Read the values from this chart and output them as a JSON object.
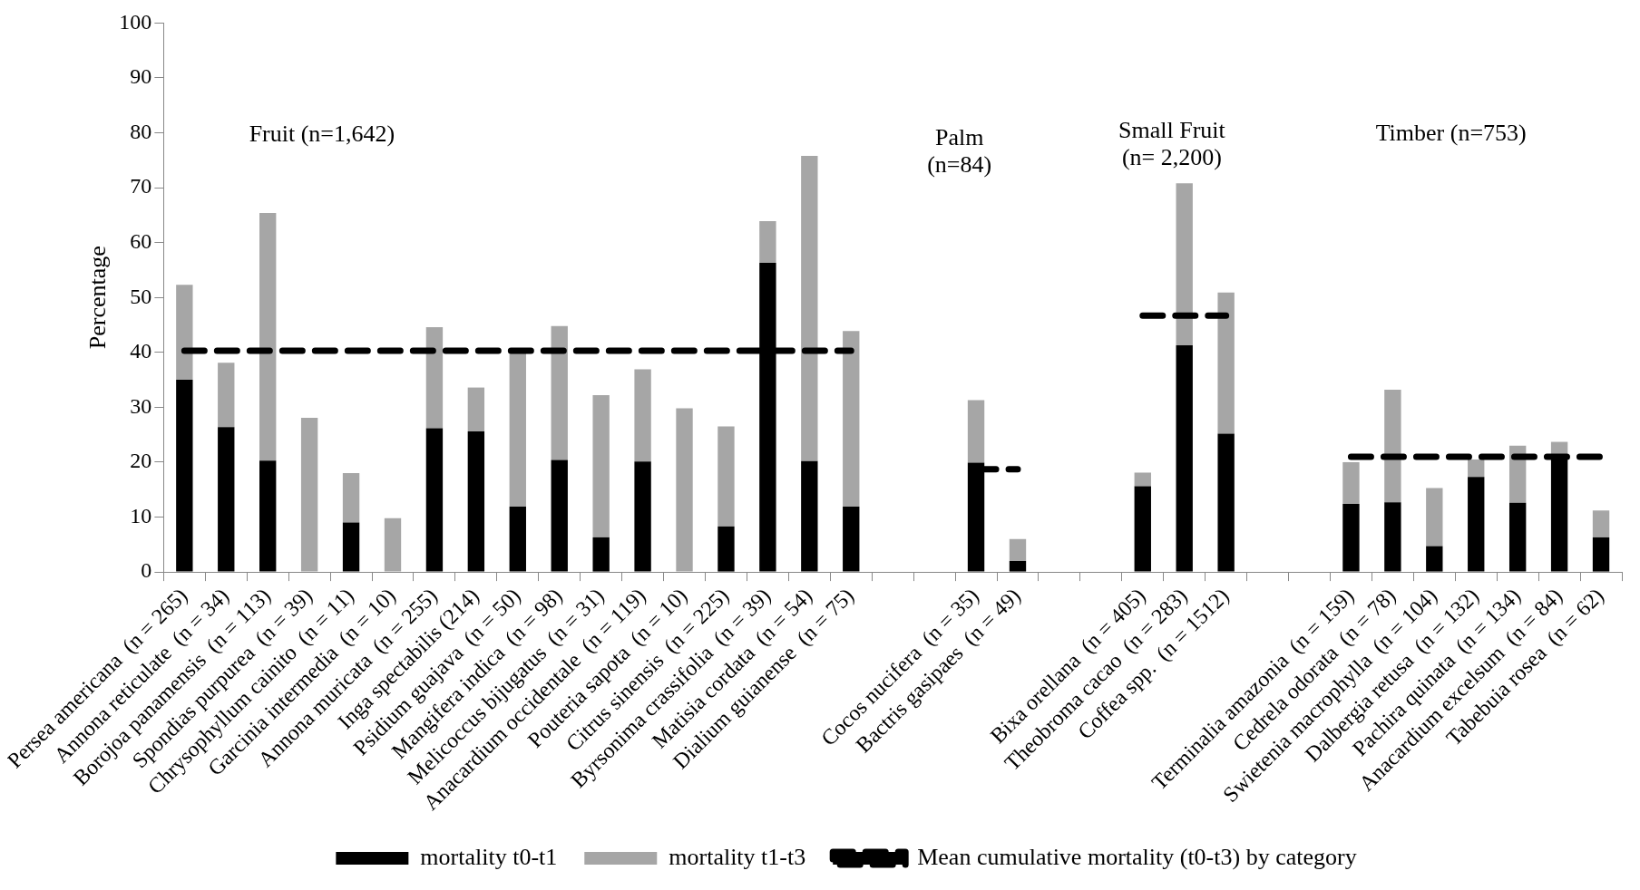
{
  "chart_data": {
    "type": "bar",
    "stacked": true,
    "ylabel": "Percentage",
    "ylim": [
      0,
      100
    ],
    "yticks": [
      0,
      10,
      20,
      30,
      40,
      50,
      60,
      70,
      80,
      90,
      100
    ],
    "legend": "bottom",
    "categories": [
      "Persea americana  (n = 265)",
      "Annona reticulate  (n = 34)",
      "Borojoa panamensis  (n = 113)",
      "Spondias purpurea  (n = 39)",
      "Chrysophyllum cainito  (n = 11)",
      "Garcinia intermedia  (n = 10)",
      "Annona muricata  (n = 255)",
      "Inga spectabilis (214)",
      "Psidium guajava  (n = 50)",
      "Mangifera indica  (n = 98)",
      "Melicoccus bijugatus  (n = 31)",
      "Anacardium occidentale  (n = 119)",
      "Pouteria sapota  (n = 10)",
      "Citrus sinensis  (n = 225)",
      "Byrsonima crassifolia  (n = 39)",
      "Matisia cordata  (n = 54)",
      "Dialium guianense  (n = 75)",
      null,
      null,
      "Cocos nucifera  (n = 35)",
      "Bactris gasipaes  (n = 49)",
      null,
      null,
      "Bixa orellana  (n = 405)",
      "Theobroma cacao  (n = 283)",
      "Coffea spp.  (n = 1512)",
      null,
      null,
      "Terminalia amazonia  (n = 159)",
      "Cedrela odorata  (n = 78)",
      "Swietenia macrophylla  (n = 104)",
      "Dalbergia retusa  (n = 132)",
      "Pachira quinata  (n = 134)",
      "Anacardium excelsum  (n = 84)",
      "Tabebuia rosea  (n = 62)"
    ],
    "series": [
      {
        "name": "mortality t0-t1",
        "color": "#000000",
        "values": [
          35,
          26.4,
          20.3,
          0,
          9,
          0,
          26.2,
          25.6,
          11.9,
          20.4,
          6.3,
          20.1,
          0,
          8.3,
          56.3,
          20.2,
          11.9,
          null,
          null,
          19.9,
          2,
          null,
          null,
          15.6,
          41.3,
          25.2,
          null,
          null,
          12.4,
          12.7,
          4.7,
          17.3,
          12.6,
          21.2,
          6.3
        ]
      },
      {
        "name": "mortality t1-t3",
        "color": "#a6a6a6",
        "values": [
          17.3,
          11.7,
          45.1,
          28.1,
          9,
          9.8,
          18.4,
          8,
          27.9,
          24.4,
          25.9,
          16.8,
          29.8,
          18.2,
          7.6,
          55.6,
          32,
          null,
          null,
          11.4,
          4,
          null,
          null,
          2.5,
          29.5,
          25.7,
          null,
          null,
          7.6,
          20.5,
          10.6,
          3.2,
          10.4,
          2.5,
          4.9
        ]
      },
      {
        "name": "Mean cumulative mortality (t0-t3) by category",
        "type": "line",
        "line_style": "dashed",
        "marker": "none",
        "color": "#000000",
        "values": [
          40.3,
          40.3,
          40.3,
          40.3,
          40.3,
          40.3,
          40.3,
          40.3,
          40.3,
          40.3,
          40.3,
          40.3,
          40.3,
          40.3,
          40.3,
          40.3,
          40.3,
          null,
          null,
          18.7,
          18.7,
          null,
          null,
          46.7,
          46.7,
          46.7,
          null,
          null,
          21,
          21,
          21,
          21,
          21,
          21,
          21
        ]
      }
    ],
    "annotations": [
      "Fruit (n=1,642)",
      "Palm (n=84)",
      "Small Fruit (n= 2,200)",
      "Timber (n=753)"
    ]
  }
}
